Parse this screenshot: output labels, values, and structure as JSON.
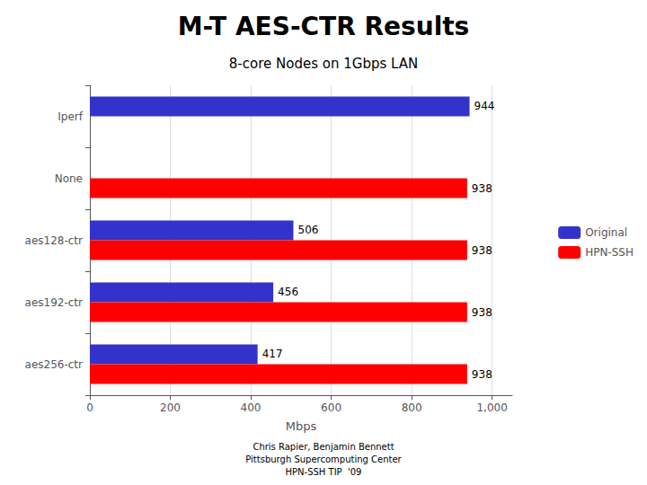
{
  "chart_data": {
    "type": "bar",
    "orientation": "horizontal",
    "title": "M-T AES-CTR Results",
    "subtitle": "8-core Nodes on 1Gbps LAN",
    "categories": [
      "Iperf",
      "None",
      "aes128-ctr",
      "aes192-ctr",
      "aes256-ctr"
    ],
    "series": [
      {
        "name": "Original",
        "color": "#3333CC",
        "values": [
          944,
          null,
          506,
          456,
          417
        ]
      },
      {
        "name": "HPN-SSH",
        "color": "#FF0000",
        "values": [
          null,
          938,
          938,
          938,
          938
        ]
      }
    ],
    "xlabel": "Mbps",
    "xlim": [
      0,
      1050
    ],
    "xticks": [
      0,
      200,
      400,
      600,
      800,
      1000
    ],
    "grid": true,
    "legend": "right",
    "data_labels": true,
    "annotations": [
      "Chris Rapier, Benjamin Bennett",
      "Pittsburgh Supercomputing Center",
      "HPN-SSH TIP  '09"
    ]
  }
}
